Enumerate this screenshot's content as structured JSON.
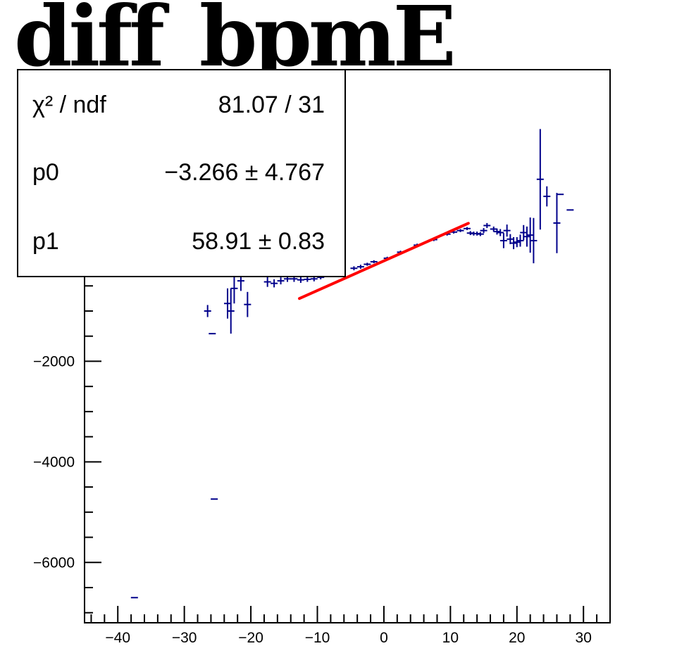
{
  "title": "diff_bpmE",
  "stats_box": {
    "chi2_label": "χ² / ndf",
    "chi2_value": "81.07 / 31",
    "rows": [
      {
        "name": "p0",
        "value": "−3.266 ± 4.767"
      },
      {
        "name": "p1",
        "value": "58.91 ± 0.83"
      }
    ]
  },
  "chart_data": {
    "type": "scatter",
    "title": "diff_bpmE",
    "xlabel": "",
    "ylabel": "",
    "xlim": [
      -45,
      34
    ],
    "ylim": [
      -7200,
      3800
    ],
    "x_ticks": [
      -40,
      -30,
      -20,
      -10,
      0,
      10,
      20,
      30
    ],
    "y_ticks": [
      -6000,
      -4000,
      -2000
    ],
    "grid": false,
    "series": [
      {
        "color": "#00008b",
        "points": [
          {
            "x": -37.5,
            "y": -6700,
            "err": 0
          },
          {
            "x": -26.5,
            "y": -1000,
            "err": 120
          },
          {
            "x": -25.8,
            "y": -1450,
            "err": 0
          },
          {
            "x": -25.5,
            "y": -4740,
            "err": 0
          },
          {
            "x": -23.5,
            "y": -850,
            "err": 300
          },
          {
            "x": -23.0,
            "y": -1000,
            "err": 450
          },
          {
            "x": -22.5,
            "y": -550,
            "err": 300
          },
          {
            "x": -21.5,
            "y": -400,
            "err": 200
          },
          {
            "x": -20.5,
            "y": -870,
            "err": 250
          },
          {
            "x": -17.5,
            "y": -420,
            "err": 100
          },
          {
            "x": -16.5,
            "y": -450,
            "err": 80
          },
          {
            "x": -15.5,
            "y": -400,
            "err": 70
          },
          {
            "x": -14.5,
            "y": -360,
            "err": 60
          },
          {
            "x": -13.5,
            "y": -360,
            "err": 60
          },
          {
            "x": -12.5,
            "y": -380,
            "err": 60
          },
          {
            "x": -11.5,
            "y": -370,
            "err": 50
          },
          {
            "x": -10.5,
            "y": -360,
            "err": 50
          },
          {
            "x": -9.5,
            "y": -330,
            "err": 40
          },
          {
            "x": -4.5,
            "y": -150,
            "err": 40
          },
          {
            "x": -3.5,
            "y": -120,
            "err": 40
          },
          {
            "x": -2.5,
            "y": -70,
            "err": 30
          },
          {
            "x": -1.5,
            "y": -20,
            "err": 30
          },
          {
            "x": 0.5,
            "y": 50,
            "err": 30
          },
          {
            "x": 2.5,
            "y": 170,
            "err": 30
          },
          {
            "x": 5.0,
            "y": 310,
            "err": 30
          },
          {
            "x": 7.5,
            "y": 420,
            "err": 30
          },
          {
            "x": 9.5,
            "y": 530,
            "err": 30
          },
          {
            "x": 10.5,
            "y": 570,
            "err": 30
          },
          {
            "x": 11.5,
            "y": 600,
            "err": 30
          },
          {
            "x": 12.5,
            "y": 640,
            "err": 30
          },
          {
            "x": 13.0,
            "y": 550,
            "err": 40
          },
          {
            "x": 13.5,
            "y": 540,
            "err": 40
          },
          {
            "x": 14.0,
            "y": 540,
            "err": 40
          },
          {
            "x": 14.5,
            "y": 530,
            "err": 40
          },
          {
            "x": 15.0,
            "y": 600,
            "err": 50
          },
          {
            "x": 15.5,
            "y": 700,
            "err": 50
          },
          {
            "x": 16.5,
            "y": 630,
            "err": 50
          },
          {
            "x": 17.0,
            "y": 580,
            "err": 60
          },
          {
            "x": 17.5,
            "y": 560,
            "err": 70
          },
          {
            "x": 18.0,
            "y": 400,
            "err": 150
          },
          {
            "x": 18.5,
            "y": 600,
            "err": 120
          },
          {
            "x": 19.0,
            "y": 430,
            "err": 100
          },
          {
            "x": 19.5,
            "y": 350,
            "err": 120
          },
          {
            "x": 20.0,
            "y": 370,
            "err": 100
          },
          {
            "x": 20.5,
            "y": 400,
            "err": 120
          },
          {
            "x": 21.0,
            "y": 560,
            "err": 150
          },
          {
            "x": 21.5,
            "y": 480,
            "err": 200
          },
          {
            "x": 22.0,
            "y": 510,
            "err": 350
          },
          {
            "x": 22.5,
            "y": 400,
            "err": 450
          },
          {
            "x": 23.5,
            "y": 1620,
            "err": 1000
          },
          {
            "x": 24.5,
            "y": 1280,
            "err": 200
          },
          {
            "x": 26.0,
            "y": 750,
            "err": 600
          },
          {
            "x": 26.5,
            "y": 1320,
            "err": 0
          },
          {
            "x": 28.0,
            "y": 1010,
            "err": 0
          }
        ]
      },
      {
        "color": "#ff0000",
        "type": "line",
        "x": [
          -12.7,
          12.7
        ],
        "y": [
          -751,
          745
        ]
      }
    ]
  }
}
